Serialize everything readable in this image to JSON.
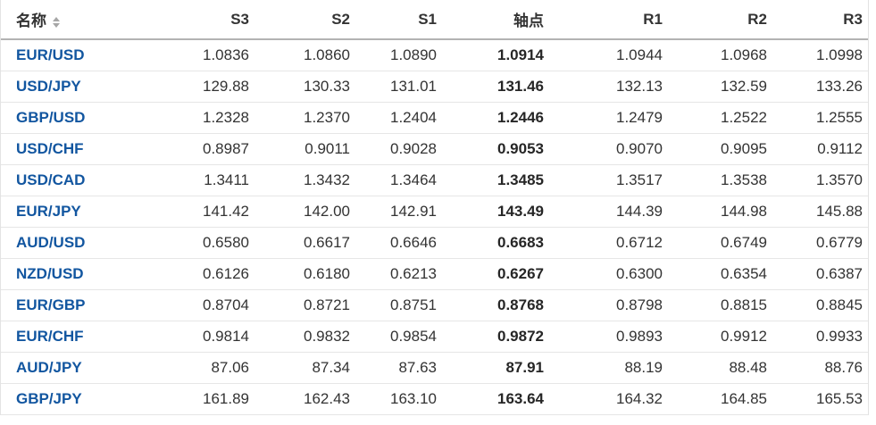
{
  "colors": {
    "link": "#1256a0",
    "text": "#333333",
    "pivot_text": "#262626",
    "header_border": "#b3b3b3",
    "row_border": "#e6e6e6",
    "side_border": "#e3e3e3",
    "sort_icon": "#a6a6a6",
    "background": "#ffffff"
  },
  "table": {
    "name_header": "名称",
    "value_headers": [
      "S3",
      "S2",
      "S1",
      "轴点",
      "R1",
      "R2",
      "R3"
    ],
    "pivot_column_index": 3,
    "rows": [
      {
        "pair": "EUR/USD",
        "values": [
          "1.0836",
          "1.0860",
          "1.0890",
          "1.0914",
          "1.0944",
          "1.0968",
          "1.0998"
        ]
      },
      {
        "pair": "USD/JPY",
        "values": [
          "129.88",
          "130.33",
          "131.01",
          "131.46",
          "132.13",
          "132.59",
          "133.26"
        ]
      },
      {
        "pair": "GBP/USD",
        "values": [
          "1.2328",
          "1.2370",
          "1.2404",
          "1.2446",
          "1.2479",
          "1.2522",
          "1.2555"
        ]
      },
      {
        "pair": "USD/CHF",
        "values": [
          "0.8987",
          "0.9011",
          "0.9028",
          "0.9053",
          "0.9070",
          "0.9095",
          "0.9112"
        ]
      },
      {
        "pair": "USD/CAD",
        "values": [
          "1.3411",
          "1.3432",
          "1.3464",
          "1.3485",
          "1.3517",
          "1.3538",
          "1.3570"
        ]
      },
      {
        "pair": "EUR/JPY",
        "values": [
          "141.42",
          "142.00",
          "142.91",
          "143.49",
          "144.39",
          "144.98",
          "145.88"
        ]
      },
      {
        "pair": "AUD/USD",
        "values": [
          "0.6580",
          "0.6617",
          "0.6646",
          "0.6683",
          "0.6712",
          "0.6749",
          "0.6779"
        ]
      },
      {
        "pair": "NZD/USD",
        "values": [
          "0.6126",
          "0.6180",
          "0.6213",
          "0.6267",
          "0.6300",
          "0.6354",
          "0.6387"
        ]
      },
      {
        "pair": "EUR/GBP",
        "values": [
          "0.8704",
          "0.8721",
          "0.8751",
          "0.8768",
          "0.8798",
          "0.8815",
          "0.8845"
        ]
      },
      {
        "pair": "EUR/CHF",
        "values": [
          "0.9814",
          "0.9832",
          "0.9854",
          "0.9872",
          "0.9893",
          "0.9912",
          "0.9933"
        ]
      },
      {
        "pair": "AUD/JPY",
        "values": [
          "87.06",
          "87.34",
          "87.63",
          "87.91",
          "88.19",
          "88.48",
          "88.76"
        ]
      },
      {
        "pair": "GBP/JPY",
        "values": [
          "161.89",
          "162.43",
          "163.10",
          "163.64",
          "164.32",
          "164.85",
          "165.53"
        ]
      }
    ]
  }
}
